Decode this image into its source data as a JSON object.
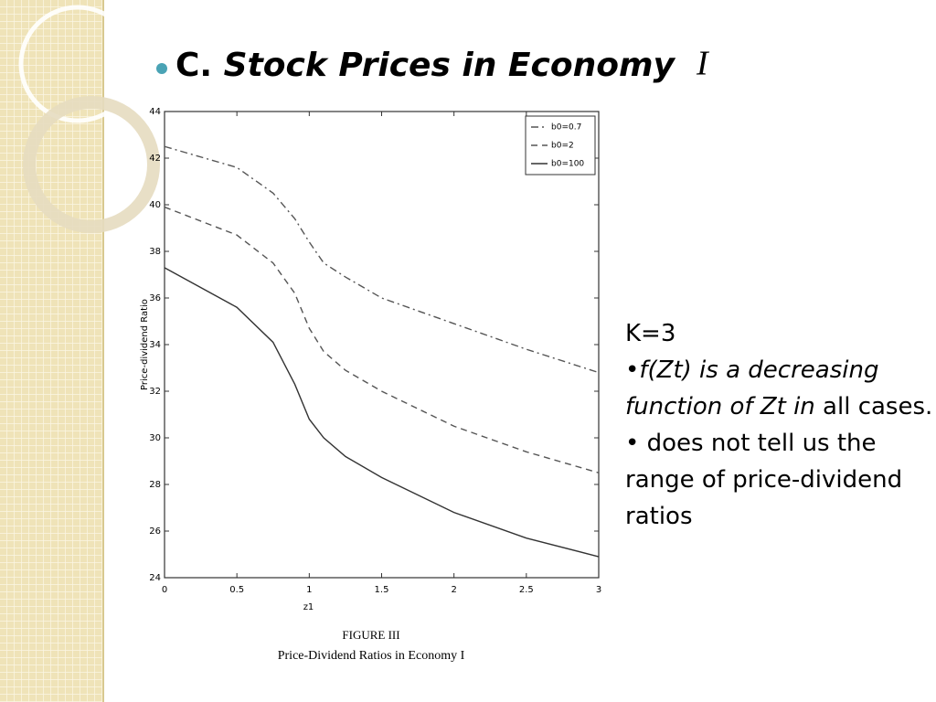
{
  "slide": {
    "title_prefix": "C.",
    "title": "Stock Prices in Economy",
    "title_symbol": "I",
    "notes": {
      "k": "K=3",
      "bullet1": "•",
      "note1_italic": "f(Zt) is a decreasing function of Zt in",
      "note1_plain": "all cases.",
      "bullet2": "•",
      "note2": "does not tell us the range of price-dividend ratios"
    }
  },
  "chart_data": {
    "type": "line",
    "x_label": "z1",
    "y_label": "Price-dividend Ratio",
    "caption_label": "FIGURE III",
    "caption": "Price-Dividend Ratios in Economy I",
    "x": [
      0,
      0.5,
      0.75,
      0.9,
      1,
      1.1,
      1.25,
      1.5,
      2,
      2.5,
      3
    ],
    "series": [
      {
        "name": "b0=0.7",
        "color": "#555555",
        "line_style": "dashdot",
        "values": [
          42.5,
          41.6,
          40.5,
          39.4,
          38.4,
          37.5,
          36.9,
          36.0,
          34.9,
          33.8,
          32.8
        ]
      },
      {
        "name": "b0=2",
        "color": "#555555",
        "line_style": "dashed",
        "values": [
          39.9,
          38.7,
          37.5,
          36.2,
          34.7,
          33.7,
          32.9,
          32.0,
          30.5,
          29.4,
          28.5
        ]
      },
      {
        "name": "b0=100",
        "color": "#333333",
        "line_style": "solid",
        "values": [
          37.3,
          35.6,
          34.1,
          32.3,
          30.8,
          30.0,
          29.2,
          28.3,
          26.8,
          25.7,
          24.9
        ]
      }
    ],
    "xlim": [
      0,
      3
    ],
    "xticks": [
      0,
      0.5,
      1,
      1.5,
      2,
      2.5,
      3
    ],
    "ylim": [
      24,
      44
    ],
    "yticks": [
      24,
      26,
      28,
      30,
      32,
      34,
      36,
      38,
      40,
      42,
      44
    ],
    "legend": "upper right"
  }
}
